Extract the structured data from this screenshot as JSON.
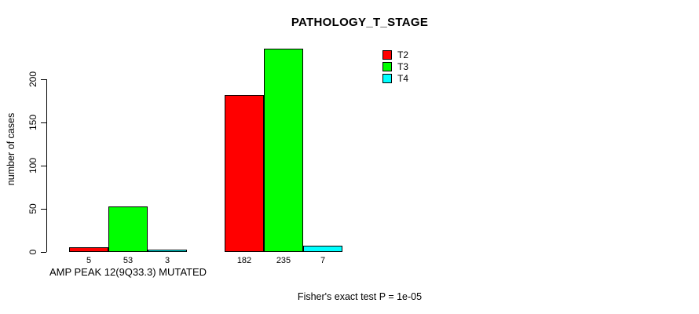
{
  "title": "PATHOLOGY_T_STAGE",
  "y_axis": {
    "label": "number of cases",
    "ticks": [
      0,
      50,
      100,
      150,
      200
    ]
  },
  "legend": {
    "items": [
      {
        "label": "T2",
        "color": "#ff0000"
      },
      {
        "label": "T3",
        "color": "#00ff00"
      },
      {
        "label": "T4",
        "color": "#00ffff"
      }
    ]
  },
  "groups": {
    "first_label": "AMP PEAK 12(9Q33.3) MUTATED",
    "second_label": ""
  },
  "footer": {
    "stat_text": "Fisher's exact test P = 1e-05"
  },
  "chart_data": {
    "type": "bar",
    "title": "PATHOLOGY_T_STAGE",
    "xlabel": "",
    "ylabel": "number of cases",
    "ylim": [
      0,
      238
    ],
    "yticks": [
      0,
      50,
      100,
      150,
      200
    ],
    "grid": false,
    "legend_position": "top-right",
    "categories": [
      "AMP PEAK 12(9Q33.3) MUTATED",
      ""
    ],
    "series": [
      {
        "name": "T2",
        "color": "#ff0000",
        "values": [
          5,
          182
        ]
      },
      {
        "name": "T3",
        "color": "#00ff00",
        "values": [
          53,
          235
        ]
      },
      {
        "name": "T4",
        "color": "#00ffff",
        "values": [
          3,
          7
        ]
      }
    ],
    "bar_value_labels": [
      [
        5,
        53,
        3
      ],
      [
        182,
        235,
        7
      ]
    ],
    "annotation": "Fisher's exact test P = 1e-05"
  }
}
